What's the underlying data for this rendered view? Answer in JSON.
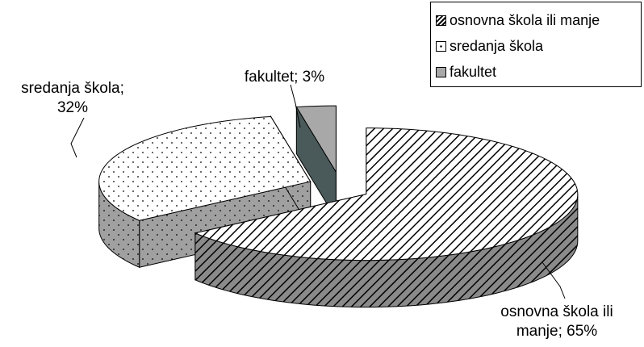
{
  "chart_data": {
    "type": "pie",
    "categories": [
      "osnovna škola ili manje",
      "sredanja škola",
      "fakultet"
    ],
    "values": [
      65,
      32,
      3
    ],
    "value_labels": [
      "osnovna škola ili manje; 65%",
      "sredanja škola; 32%",
      "fakultet; 3%"
    ],
    "colors": [
      "#ffffff",
      "#ffffff",
      "#a8a8a8"
    ],
    "legend": "top-right"
  }
}
